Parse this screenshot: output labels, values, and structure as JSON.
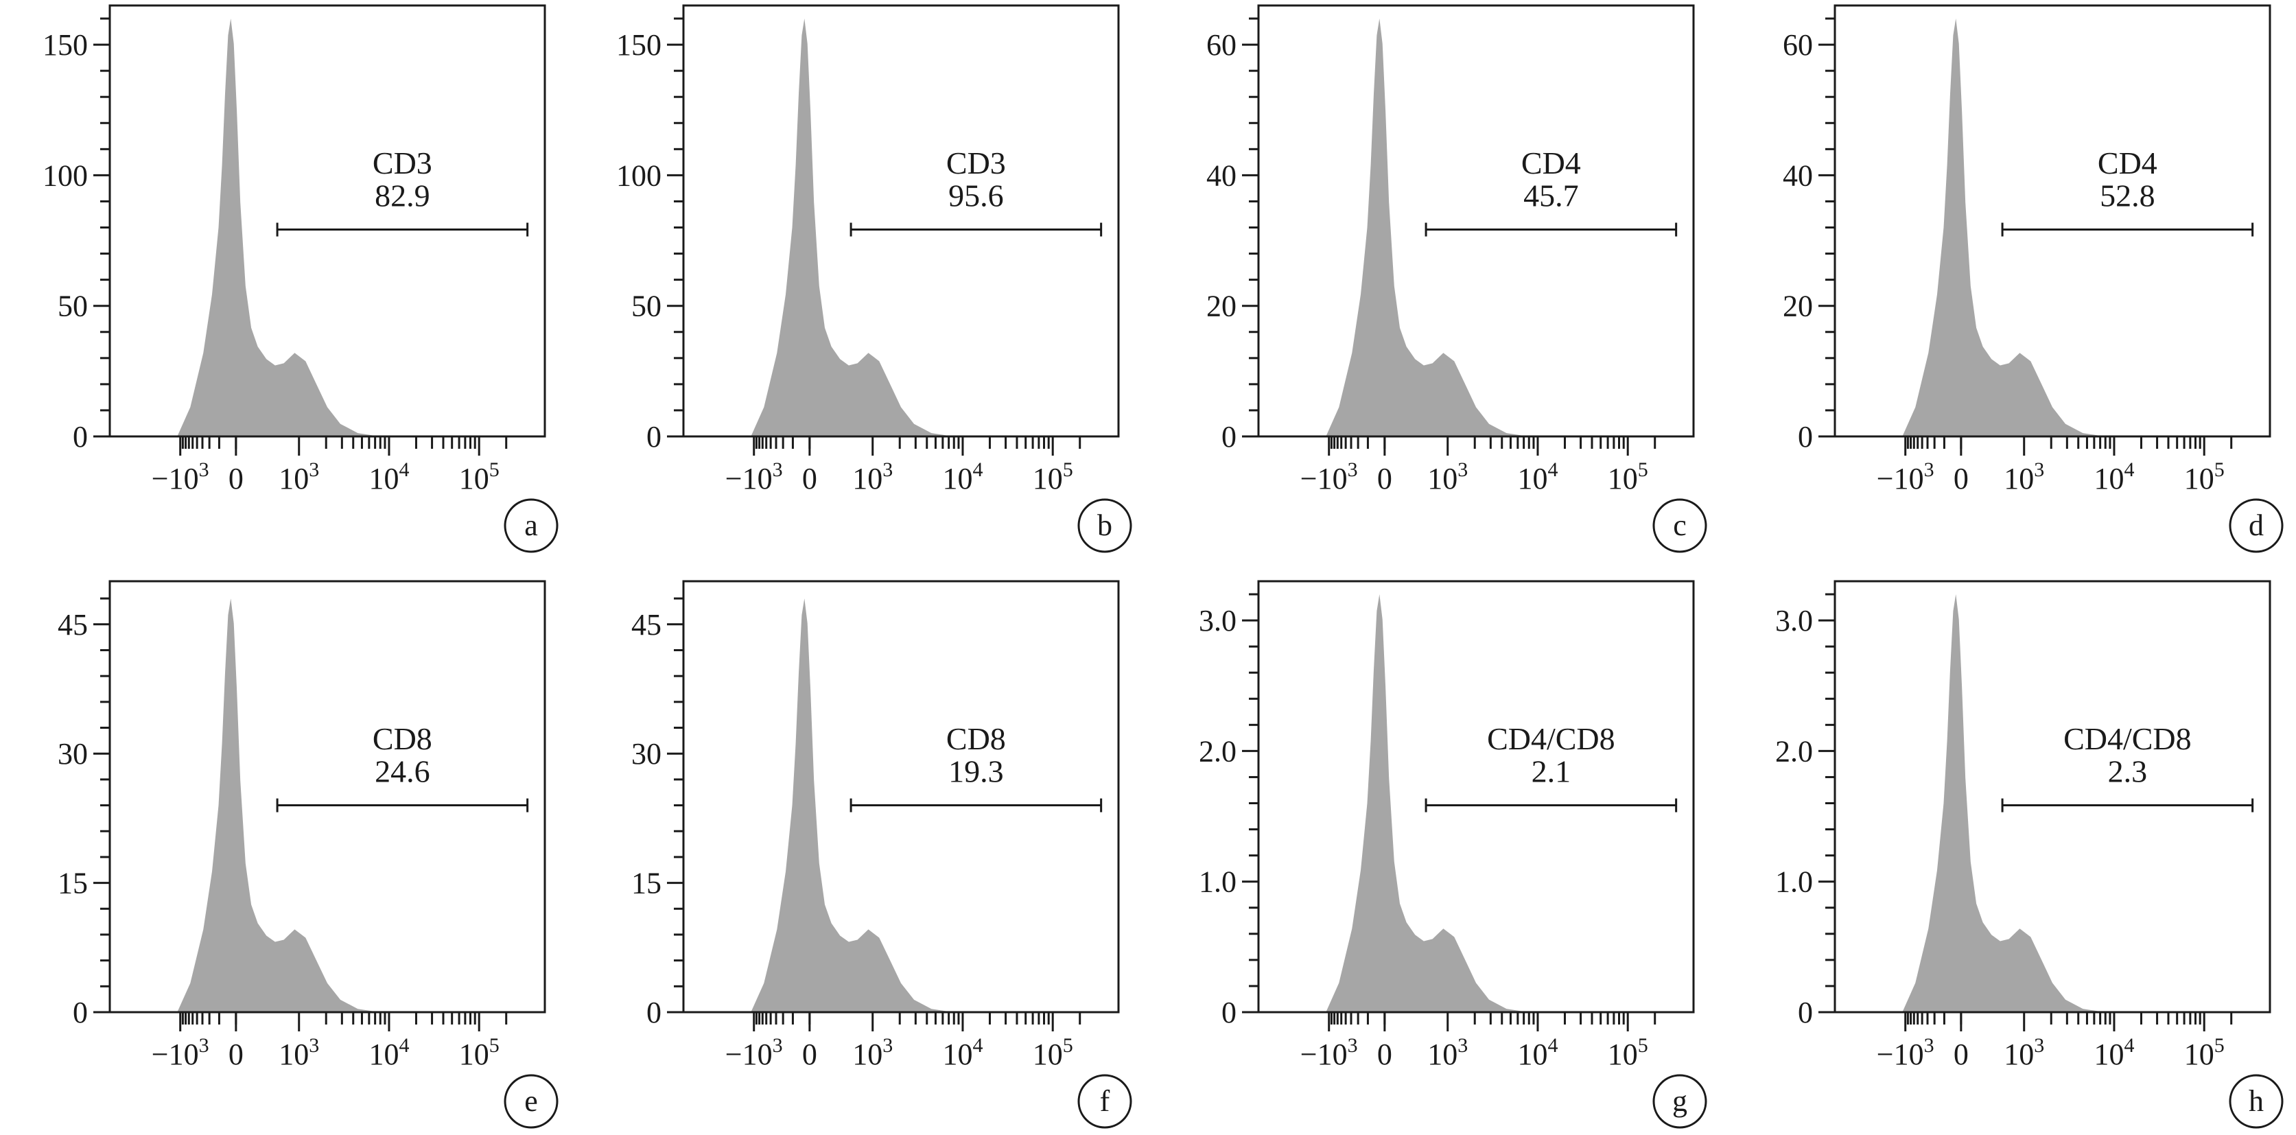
{
  "figure": {
    "fill_color": "#a6a6a6",
    "ink_color": "#1a1a1a",
    "x_tick_labels": [
      {
        "base": "−10",
        "exp": "3",
        "value": -1000
      },
      {
        "base": "0",
        "exp": "",
        "value": 0
      },
      {
        "base": "10",
        "exp": "3",
        "value": 1000
      },
      {
        "base": "10",
        "exp": "4",
        "value": 10000
      },
      {
        "base": "10",
        "exp": "5",
        "value": 100000
      }
    ]
  },
  "chart_data": [
    {
      "type": "area",
      "panel_label": "a",
      "marker": "CD3",
      "gate_value": "82.9",
      "ylim": [
        0,
        165
      ],
      "yticks": [
        0,
        50,
        100,
        150
      ],
      "ytick_labels": [
        "0",
        "50",
        "100",
        "150"
      ],
      "peak": 160,
      "xscale": "biexponential",
      "title": "",
      "xlabel": "",
      "ylabel": ""
    },
    {
      "type": "area",
      "panel_label": "b",
      "marker": "CD3",
      "gate_value": "95.6",
      "ylim": [
        0,
        165
      ],
      "yticks": [
        0,
        50,
        100,
        150
      ],
      "ytick_labels": [
        "0",
        "50",
        "100",
        "150"
      ],
      "peak": 160,
      "xscale": "biexponential",
      "title": "",
      "xlabel": "",
      "ylabel": ""
    },
    {
      "type": "area",
      "panel_label": "c",
      "marker": "CD4",
      "gate_value": "45.7",
      "ylim": [
        0,
        66
      ],
      "yticks": [
        0,
        20,
        40,
        60
      ],
      "ytick_labels": [
        "0",
        "20",
        "40",
        "60"
      ],
      "peak": 64,
      "xscale": "biexponential",
      "title": "",
      "xlabel": "",
      "ylabel": ""
    },
    {
      "type": "area",
      "panel_label": "d",
      "marker": "CD4",
      "gate_value": "52.8",
      "ylim": [
        0,
        66
      ],
      "yticks": [
        0,
        20,
        40,
        60
      ],
      "ytick_labels": [
        "0",
        "20",
        "40",
        "60"
      ],
      "peak": 64,
      "xscale": "biexponential",
      "title": "",
      "xlabel": "",
      "ylabel": ""
    },
    {
      "type": "area",
      "panel_label": "e",
      "marker": "CD8",
      "gate_value": "24.6",
      "ylim": [
        0,
        50
      ],
      "yticks": [
        0,
        15,
        30,
        45
      ],
      "ytick_labels": [
        "0",
        "15",
        "30",
        "45"
      ],
      "peak": 48,
      "xscale": "biexponential",
      "title": "",
      "xlabel": "",
      "ylabel": ""
    },
    {
      "type": "area",
      "panel_label": "f",
      "marker": "CD8",
      "gate_value": "19.3",
      "ylim": [
        0,
        50
      ],
      "yticks": [
        0,
        15,
        30,
        45
      ],
      "ytick_labels": [
        "0",
        "15",
        "30",
        "45"
      ],
      "peak": 48,
      "xscale": "biexponential",
      "title": "",
      "xlabel": "",
      "ylabel": ""
    },
    {
      "type": "area",
      "panel_label": "g",
      "marker": "CD4/CD8",
      "gate_value": "2.1",
      "ylim": [
        0,
        3.3
      ],
      "yticks": [
        0,
        1,
        2,
        3
      ],
      "ytick_labels": [
        "0",
        "1.0",
        "2.0",
        "3.0"
      ],
      "peak": 3.2,
      "xscale": "biexponential",
      "title": "",
      "xlabel": "",
      "ylabel": ""
    },
    {
      "type": "area",
      "panel_label": "h",
      "marker": "CD4/CD8",
      "gate_value": "2.3",
      "ylim": [
        0,
        3.3
      ],
      "yticks": [
        0,
        1,
        2,
        3
      ],
      "ytick_labels": [
        "0",
        "1.0",
        "2.0",
        "3.0"
      ],
      "peak": 3.2,
      "xscale": "biexponential",
      "title": "",
      "xlabel": "",
      "ylabel": ""
    }
  ]
}
